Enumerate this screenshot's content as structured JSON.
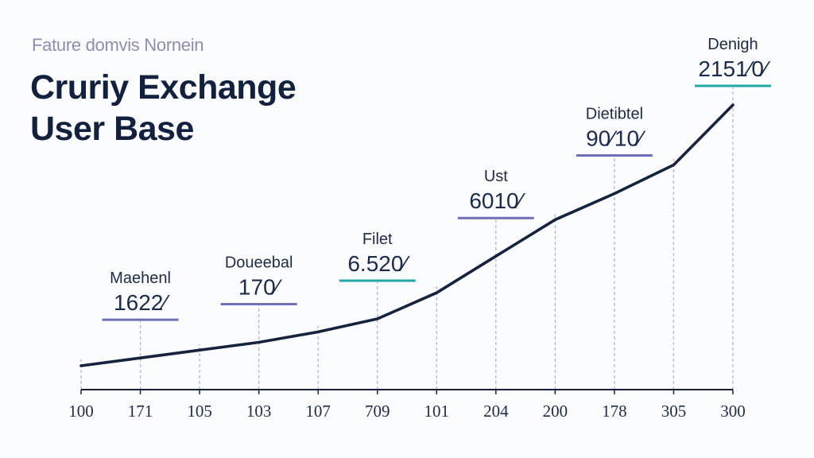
{
  "header": {
    "subtitle": "Fature domvis Nornein",
    "title_line1": "Cruriy Exchange",
    "title_line2": "User Base"
  },
  "colors": {
    "line": "#17233d",
    "axis": "#17233d",
    "guide": "#b7bdcc",
    "purple": "#6f6fb8",
    "teal": "#22a8a4",
    "text": "#1f2a44"
  },
  "chart_data": {
    "type": "line",
    "x_tick_labels": [
      "100",
      "171",
      "105",
      "103",
      "107",
      "709",
      "101",
      "204",
      "200",
      "178",
      "305",
      "300"
    ],
    "series": [
      {
        "values": [
          0.0,
          3.0,
          6.0,
          9.0,
          13.0,
          18.0,
          28.0,
          42.0,
          56.0,
          66.0,
          77.0,
          100.0
        ]
      }
    ],
    "ylim": [
      0,
      100
    ],
    "grid": false,
    "annotations": [
      {
        "x_index": 1,
        "name": "Maehenl",
        "value": "1622⁄",
        "accent": "purple"
      },
      {
        "x_index": 3,
        "name": "Doueebal",
        "value": "170⁄",
        "accent": "purple"
      },
      {
        "x_index": 5,
        "name": "Filet",
        "value": "6.520⁄",
        "accent": "teal"
      },
      {
        "x_index": 7,
        "name": "Ust",
        "value": "6010⁄",
        "accent": "purple"
      },
      {
        "x_index": 9,
        "name": "Dietibtel",
        "value": "90⁄10⁄",
        "accent": "purple"
      },
      {
        "x_index": 11,
        "name": "Denigh",
        "value": "2151⁄0⁄",
        "accent": "teal"
      }
    ]
  }
}
